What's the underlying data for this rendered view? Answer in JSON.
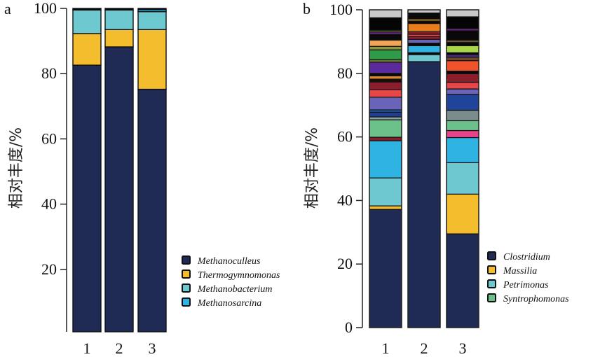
{
  "chart_data": [
    {
      "type": "bar",
      "stacked": true,
      "panel": "a",
      "title": "",
      "xlabel": "",
      "ylabel": "相对丰度/%",
      "ylim": [
        0,
        100
      ],
      "yticks": [
        20,
        40,
        60,
        80,
        100
      ],
      "categories": [
        "1",
        "2",
        "3"
      ],
      "grid": false,
      "legend_position": "bottom-right",
      "series": [
        {
          "name": "Methanoculleus",
          "color": "#1f2a55",
          "values": [
            82.6,
            88.2,
            75.2
          ]
        },
        {
          "name": "Thermogymnomonas",
          "color": "#f3bd2e",
          "values": [
            9.7,
            5.3,
            18.3
          ]
        },
        {
          "name": "Methanobacterium",
          "color": "#6ec8d0",
          "values": [
            7.2,
            6.0,
            5.5
          ]
        },
        {
          "name": "Methanosarcina",
          "color": "#2fb3e3",
          "values": [
            0.0,
            0.0,
            0.6
          ]
        },
        {
          "name": "Other",
          "color": "#0a0a0a",
          "values": [
            0.5,
            0.5,
            0.4
          ]
        }
      ],
      "legend": [
        "Methanoculleus",
        "Thermogymnomonas",
        "Methanobacterium",
        "Methanosarcina"
      ]
    },
    {
      "type": "bar",
      "stacked": true,
      "panel": "b",
      "title": "",
      "xlabel": "",
      "ylabel": "相对丰度/%",
      "ylim": [
        0,
        100
      ],
      "yticks": [
        0,
        20,
        40,
        60,
        80,
        100
      ],
      "categories": [
        "1",
        "2",
        "3"
      ],
      "grid": false,
      "legend_position": "bottom-right",
      "legend": [
        {
          "name": "Clostridium",
          "color": "#1f2a55"
        },
        {
          "name": "Massilia",
          "color": "#f3bd2e"
        },
        {
          "name": "Petrimonas",
          "color": "#6ec8d0"
        },
        {
          "name": "Syntrophomonas",
          "color": "#6cc18a"
        }
      ],
      "stacks": [
        {
          "category": "1",
          "segments": [
            {
              "name": "Clostridium",
              "color": "#1f2a55",
              "top": 37.2
            },
            {
              "name": "Massilia",
              "color": "#f3bd2e",
              "top": 38.3
            },
            {
              "name": "Petrimonas",
              "color": "#6ec8d0",
              "top": 47.1
            },
            {
              "name": "other",
              "color": "#2fb3e3",
              "top": 58.8
            },
            {
              "name": "other",
              "color": "#8b1e2a",
              "top": 59.9
            },
            {
              "name": "Syntrophomonas",
              "color": "#6cc18a",
              "top": 65.4
            },
            {
              "name": "other",
              "color": "#8fa3a3",
              "top": 66.3
            },
            {
              "name": "other",
              "color": "#1f3f8f",
              "top": 67.8
            },
            {
              "name": "other",
              "color": "#2f66c0",
              "top": 68.5
            },
            {
              "name": "other",
              "color": "#6a64b8",
              "top": 72.5
            },
            {
              "name": "other",
              "color": "#e8474a",
              "top": 74.9
            },
            {
              "name": "other",
              "color": "#8b1e2a",
              "top": 77.3
            },
            {
              "name": "other",
              "color": "#1a0a0a",
              "top": 78.2
            },
            {
              "name": "other",
              "color": "#e08a2a",
              "top": 79.2
            },
            {
              "name": "other",
              "color": "#0a0a0a",
              "top": 80.0
            },
            {
              "name": "other",
              "color": "#5a2a9a",
              "top": 83.5
            },
            {
              "name": "other",
              "color": "#6b7a2a",
              "top": 84.3
            },
            {
              "name": "other",
              "color": "#2e9a4a",
              "top": 87.4
            },
            {
              "name": "other",
              "color": "#8a9a3a",
              "top": 88.5
            },
            {
              "name": "other",
              "color": "#f2a55a",
              "top": 90.5
            },
            {
              "name": "other",
              "color": "#0a0a0a",
              "top": 92.3
            },
            {
              "name": "other",
              "color": "#7a2a8a",
              "top": 93.0
            },
            {
              "name": "other",
              "color": "#5a6a3a",
              "top": 93.6
            },
            {
              "name": "other",
              "color": "#050505",
              "top": 97.5
            },
            {
              "name": "other",
              "color": "#c8c8c8",
              "top": 100.0
            }
          ]
        },
        {
          "category": "2",
          "segments": [
            {
              "name": "Clostridium",
              "color": "#1f2a55",
              "top": 83.7
            },
            {
              "name": "Petrimonas",
              "color": "#6ec8d0",
              "top": 85.9
            },
            {
              "name": "other",
              "color": "#0a0a0a",
              "top": 86.5
            },
            {
              "name": "other",
              "color": "#2fb3e3",
              "top": 88.7
            },
            {
              "name": "other",
              "color": "#0a0a0a",
              "top": 89.5
            },
            {
              "name": "other",
              "color": "#6a64b8",
              "top": 90.7
            },
            {
              "name": "other",
              "color": "#8b1e2a",
              "top": 91.6
            },
            {
              "name": "other",
              "color": "#e8474a",
              "top": 92.3
            },
            {
              "name": "other",
              "color": "#8b1e2a",
              "top": 93.1
            },
            {
              "name": "other",
              "color": "#e87d1e",
              "top": 95.7
            },
            {
              "name": "other",
              "color": "#0a0a0a",
              "top": 96.4
            },
            {
              "name": "other",
              "color": "#8a6a2a",
              "top": 97.2
            },
            {
              "name": "other",
              "color": "#0a0a0a",
              "top": 99.0
            },
            {
              "name": "other",
              "color": "#c8c8c8",
              "top": 100.0
            }
          ]
        },
        {
          "category": "3",
          "segments": [
            {
              "name": "Clostridium",
              "color": "#1f2a55",
              "top": 29.5
            },
            {
              "name": "Massilia",
              "color": "#f3bd2e",
              "top": 42.0
            },
            {
              "name": "Petrimonas",
              "color": "#6ec8d0",
              "top": 51.9
            },
            {
              "name": "other",
              "color": "#2fb3e3",
              "top": 59.8
            },
            {
              "name": "other",
              "color": "#e8448a",
              "top": 62.0
            },
            {
              "name": "Syntrophomonas",
              "color": "#6cc18a",
              "top": 65.1
            },
            {
              "name": "other",
              "color": "#7a8c8c",
              "top": 68.4
            },
            {
              "name": "other",
              "color": "#1f449a",
              "top": 73.4
            },
            {
              "name": "other",
              "color": "#6a64b8",
              "top": 75.1
            },
            {
              "name": "other",
              "color": "#e8474a",
              "top": 77.2
            },
            {
              "name": "other",
              "color": "#8b1e2a",
              "top": 79.9
            },
            {
              "name": "other",
              "color": "#0a0a0a",
              "top": 80.7
            },
            {
              "name": "other",
              "color": "#f0522a",
              "top": 84.0
            },
            {
              "name": "other",
              "color": "#6a4a2a",
              "top": 85.1
            },
            {
              "name": "other",
              "color": "#4a2a8a",
              "top": 85.9
            },
            {
              "name": "other",
              "color": "#0a0a0a",
              "top": 86.5
            },
            {
              "name": "other",
              "color": "#a8d84a",
              "top": 88.7
            },
            {
              "name": "other",
              "color": "#0a0a0a",
              "top": 89.7
            },
            {
              "name": "other",
              "color": "#6a5a3a",
              "top": 90.5
            },
            {
              "name": "other",
              "color": "#0a0808",
              "top": 93.4
            },
            {
              "name": "other",
              "color": "#6a2a8a",
              "top": 94.1
            },
            {
              "name": "other",
              "color": "#050505",
              "top": 97.8
            },
            {
              "name": "other",
              "color": "#c8c8c8",
              "top": 100.0
            }
          ]
        }
      ]
    }
  ]
}
